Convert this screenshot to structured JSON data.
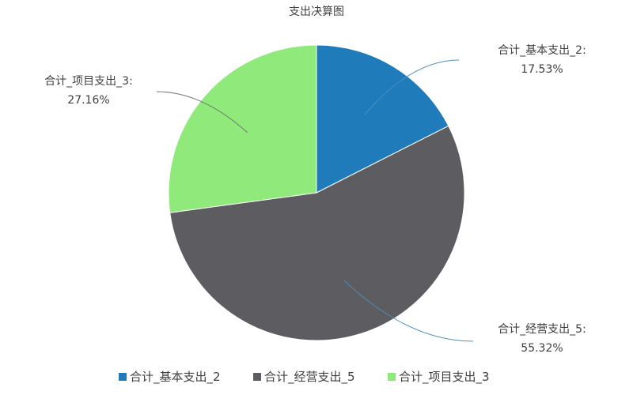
{
  "chart_data": {
    "type": "pie",
    "title": "支出决算图",
    "categories": [
      "合计_基本支出_2",
      "合计_经营支出_5",
      "合计_项目支出_3"
    ],
    "values": [
      17.53,
      55.32,
      27.16
    ],
    "value_labels": [
      "17.53%",
      "55.32%",
      "27.16%"
    ],
    "colors": [
      "#1f7bba",
      "#5d5c61",
      "#90ea7b"
    ],
    "legend": {
      "position": "bottom",
      "entries": [
        "合计_基本支出_2",
        "合计_经营支出_5",
        "合计_项目支出_3"
      ]
    }
  }
}
